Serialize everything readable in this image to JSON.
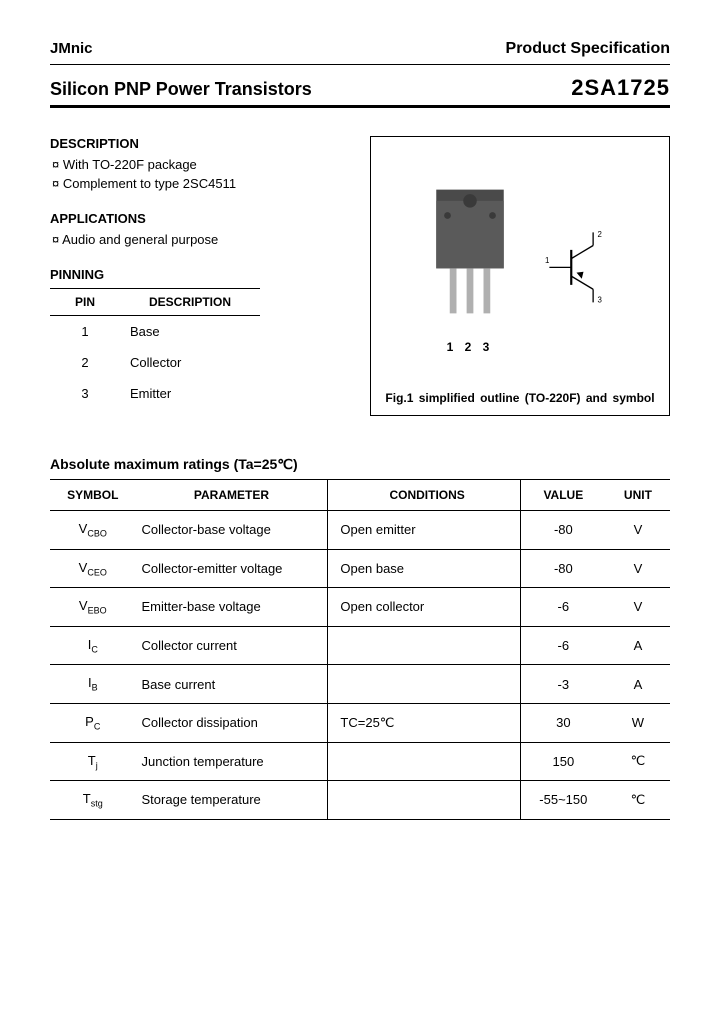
{
  "header": {
    "brand": "JMnic",
    "spec_label": "Product Specification",
    "product_title": "Silicon PNP Power Transistors",
    "part_number": "2SA1725"
  },
  "description": {
    "heading": "DESCRIPTION",
    "items": [
      "With TO-220F package",
      "Complement to type 2SC4511"
    ]
  },
  "applications": {
    "heading": "APPLICATIONS",
    "items": [
      "Audio and general purpose"
    ]
  },
  "pinning": {
    "heading": "PINNING",
    "col_pin": "PIN",
    "col_desc": "DESCRIPTION",
    "rows": [
      {
        "pin": "1",
        "desc": "Base"
      },
      {
        "pin": "2",
        "desc": "Collector"
      },
      {
        "pin": "3",
        "desc": "Emitter"
      }
    ]
  },
  "figure": {
    "pin_label": "1 2 3",
    "caption": "Fig.1 simplified outline (TO-220F) and symbol",
    "package_color": "#4a4a4a",
    "lead_color": "#b0b0b0",
    "symbol_terminals": {
      "base": "1",
      "collector": "2",
      "emitter": "3"
    }
  },
  "ratings": {
    "title": "Absolute maximum ratings (Ta=25℃)",
    "columns": {
      "symbol": "SYMBOL",
      "parameter": "PARAMETER",
      "conditions": "CONDITIONS",
      "value": "VALUE",
      "unit": "UNIT"
    },
    "rows": [
      {
        "sym_main": "V",
        "sym_sub": "CBO",
        "param": "Collector-base voltage",
        "cond": "Open emitter",
        "value": "-80",
        "unit": "V"
      },
      {
        "sym_main": "V",
        "sym_sub": "CEO",
        "param": "Collector-emitter voltage",
        "cond": "Open base",
        "value": "-80",
        "unit": "V"
      },
      {
        "sym_main": "V",
        "sym_sub": "EBO",
        "param": "Emitter-base voltage",
        "cond": "Open collector",
        "value": "-6",
        "unit": "V"
      },
      {
        "sym_main": "I",
        "sym_sub": "C",
        "param": "Collector current",
        "cond": "",
        "value": "-6",
        "unit": "A"
      },
      {
        "sym_main": "I",
        "sym_sub": "B",
        "param": "Base current",
        "cond": "",
        "value": "-3",
        "unit": "A"
      },
      {
        "sym_main": "P",
        "sym_sub": "C",
        "param": "Collector dissipation",
        "cond": "TC=25℃",
        "value": "30",
        "unit": "W"
      },
      {
        "sym_main": "T",
        "sym_sub": "j",
        "param": "Junction temperature",
        "cond": "",
        "value": "150",
        "unit": "℃"
      },
      {
        "sym_main": "T",
        "sym_sub": "stg",
        "param": "Storage temperature",
        "cond": "",
        "value": "-55~150",
        "unit": "℃"
      }
    ]
  },
  "colors": {
    "text": "#000000",
    "border": "#000000",
    "background": "#ffffff"
  }
}
